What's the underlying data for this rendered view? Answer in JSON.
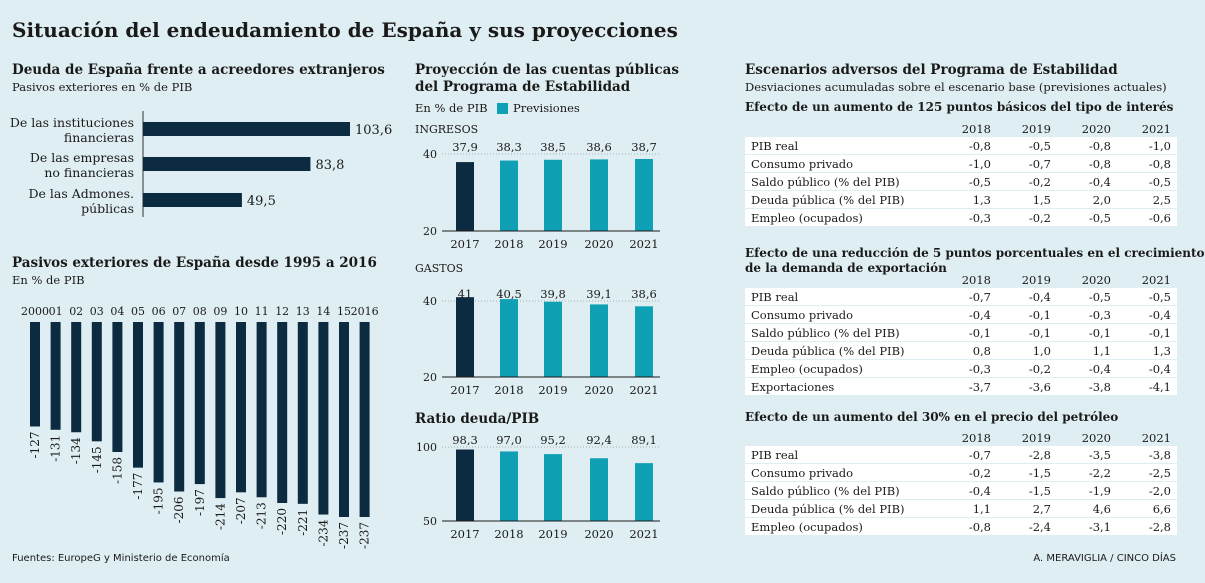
{
  "title": "Situación del endeudamiento de España y sus proyecciones",
  "debt_creditors": {
    "title": "Deuda de España frente a acreedores extranjeros",
    "subtitle": "Pasivos exteriores en % de PIB"
  },
  "pasivos": {
    "title": "Pasivos exteriores de España desde 1995 a 2016",
    "subtitle": "En % de PIB"
  },
  "proyeccion": {
    "title_line1": "Proyección de las cuentas públicas",
    "title_line2": "del Programa  de Estabilidad",
    "legend_unit": "En % de PIB",
    "legend_previsiones": "Previsiones",
    "panel_ingresos": "INGRESOS",
    "panel_gastos": "GASTOS",
    "panel_ratio": "Ratio deuda/PIB"
  },
  "chart_data": [
    {
      "type": "bar",
      "orientation": "horizontal",
      "title": "Deuda de España frente a acreedores extranjeros",
      "subtitle": "Pasivos exteriores en % de PIB",
      "categories": [
        [
          "De las instituciones",
          "financieras"
        ],
        [
          "De las empresas",
          "no financieras"
        ],
        [
          "De las Admones.",
          "públicas"
        ]
      ],
      "values": [
        103.6,
        83.8,
        49.5
      ],
      "labels": [
        "103,6",
        "83,8",
        "49,5"
      ],
      "xlim": [
        0,
        125
      ],
      "grid": false
    },
    {
      "type": "bar",
      "title": "Pasivos exteriores de España desde 1995 a 2016",
      "subtitle": "En % de PIB",
      "categories": [
        "2000",
        "01",
        "02",
        "03",
        "04",
        "05",
        "06",
        "07",
        "08",
        "09",
        "10",
        "11",
        "12",
        "13",
        "14",
        "15",
        "2016"
      ],
      "values": [
        -127,
        -131,
        -134,
        -145,
        -158,
        -177,
        -195,
        -206,
        -197,
        -214,
        -207,
        -213,
        -220,
        -221,
        -234,
        -237,
        -237
      ],
      "labels": [
        "-127",
        "-131",
        "-134",
        "-145",
        "-158",
        "-177",
        "-195",
        "-206",
        "-197",
        "-214",
        "-207",
        "-213",
        "-220",
        "-221",
        "-234",
        "-237",
        "-237"
      ],
      "ylim": [
        -260,
        0
      ]
    },
    {
      "type": "bar",
      "title": "INGRESOS",
      "categories": [
        "2017",
        "2018",
        "2019",
        "2020",
        "2021"
      ],
      "values": [
        37.9,
        38.3,
        38.5,
        38.6,
        38.7
      ],
      "labels": [
        "37,9",
        "38,3",
        "38,5",
        "38,6",
        "38,7"
      ],
      "forecast_from": "2018",
      "ylim": [
        20,
        40
      ],
      "yticks": [
        "40",
        "20"
      ]
    },
    {
      "type": "bar",
      "title": "GASTOS",
      "categories": [
        "2017",
        "2018",
        "2019",
        "2020",
        "2021"
      ],
      "values": [
        41,
        40.5,
        39.8,
        39.1,
        38.6
      ],
      "labels": [
        "41",
        "40,5",
        "39,8",
        "39,1",
        "38,6"
      ],
      "forecast_from": "2018",
      "ylim": [
        20,
        40
      ],
      "yticks": [
        "40",
        "20"
      ]
    },
    {
      "type": "bar",
      "title": "Ratio deuda/PIB",
      "categories": [
        "2017",
        "2018",
        "2019",
        "2020",
        "2021"
      ],
      "values": [
        98.3,
        97.0,
        95.2,
        92.4,
        89.1
      ],
      "labels": [
        "98,3",
        "97,0",
        "95,2",
        "92,4",
        "89,1"
      ],
      "forecast_from": "2018",
      "ylim": [
        50,
        100
      ],
      "yticks": [
        "100",
        "50"
      ]
    }
  ],
  "escenarios": {
    "title": "Escenarios adversos del Programa de Estabilidad",
    "subtitle": "Desviaciones acumuladas sobre el escenario base (previsiones actuales)",
    "tables": [
      {
        "title": "Efecto de un aumento de 125 puntos básicos del tipo de interés",
        "years": [
          "2018",
          "2019",
          "2020",
          "2021"
        ],
        "rows": [
          {
            "label": "PIB real",
            "values": [
              "-0,8",
              "-0,5",
              "-0,8",
              "-1,0"
            ]
          },
          {
            "label": "Consumo privado",
            "values": [
              "-1,0",
              "-0,7",
              "-0,8",
              "-0,8"
            ]
          },
          {
            "label": "Saldo público (% del PIB)",
            "values": [
              "-0,5",
              "-0,2",
              "-0,4",
              "-0,5"
            ]
          },
          {
            "label": "Deuda pública (% del PIB)",
            "values": [
              "1,3",
              "1,5",
              "2,0",
              "2,5"
            ]
          },
          {
            "label": "Empleo (ocupados)",
            "values": [
              "-0,3",
              "-0,2",
              "-0,5",
              "-0,6"
            ]
          }
        ]
      },
      {
        "title": "Efecto de una reducción de 5 puntos porcentuales en el crecimiento",
        "title2": "de la demanda de exportación",
        "years": [
          "2018",
          "2019",
          "2020",
          "2021"
        ],
        "rows": [
          {
            "label": "PIB real",
            "values": [
              "-0,7",
              "-0,4",
              "-0,5",
              "-0,5"
            ]
          },
          {
            "label": "Consumo privado",
            "values": [
              "-0,4",
              "-0,1",
              "-0,3",
              "-0,4"
            ]
          },
          {
            "label": "Saldo público (% del PIB)",
            "values": [
              "-0,1",
              "-0,1",
              "-0,1",
              "-0,1"
            ]
          },
          {
            "label": "Deuda pública (% del PIB)",
            "values": [
              "0,8",
              "1,0",
              "1,1",
              "1,3"
            ]
          },
          {
            "label": "Empleo (ocupados)",
            "values": [
              "-0,3",
              "-0,2",
              "-0,4",
              "-0,4"
            ]
          },
          {
            "label": "Exportaciones",
            "values": [
              "-3,7",
              "-3,6",
              "-3,8",
              "-4,1"
            ]
          }
        ]
      },
      {
        "title": "Efecto de un aumento del 30% en el precio del petróleo",
        "years": [
          "2018",
          "2019",
          "2020",
          "2021"
        ],
        "rows": [
          {
            "label": "PIB real",
            "values": [
              "-0,7",
              "-2,8",
              "-3,5",
              "-3,8"
            ]
          },
          {
            "label": "Consumo privado",
            "values": [
              "-0,2",
              "-1,5",
              "-2,2",
              "-2,5"
            ]
          },
          {
            "label": "Saldo público (% del PIB)",
            "values": [
              "-0,4",
              "-1,5",
              "-1,9",
              "-2,0"
            ]
          },
          {
            "label": "Deuda pública (% del PIB)",
            "values": [
              "1,1",
              "2,7",
              "4,6",
              "6,6"
            ]
          },
          {
            "label": "Empleo (ocupados)",
            "values": [
              "-0,8",
              "-2,4",
              "-3,1",
              "-2,8"
            ]
          }
        ]
      }
    ]
  },
  "footer": {
    "source": "Fuentes: EuropeG y Ministerio de Economía",
    "credit": "A. MERAVIGLIA / CINCO DÍAS"
  },
  "colors": {
    "dark": "#0c2a40",
    "teal": "#0fa0b5",
    "background": "#dfeef2"
  }
}
